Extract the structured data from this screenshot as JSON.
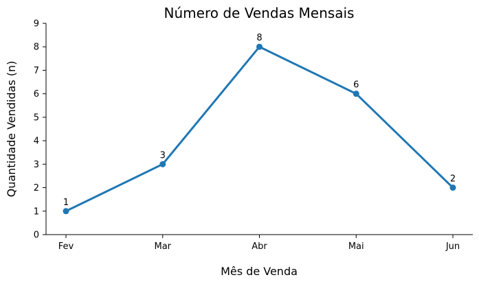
{
  "chart_data": {
    "type": "line",
    "title": "Número de Vendas Mensais",
    "xlabel": "Mês de Venda",
    "ylabel": "Quantidade Vendidas (n)",
    "categories": [
      "Fev",
      "Mar",
      "Abr",
      "Mai",
      "Jun"
    ],
    "series": [
      {
        "values": [
          1,
          3,
          8,
          6,
          2
        ],
        "color": "#1f77b4",
        "marker": "circle"
      }
    ],
    "data_labels": [
      "1",
      "3",
      "8",
      "6",
      "2"
    ],
    "ylim": [
      0,
      9
    ],
    "yticks": [
      "0",
      "1",
      "2",
      "3",
      "4",
      "5",
      "6",
      "7",
      "8",
      "9"
    ],
    "grid": false,
    "spines": [
      "left",
      "bottom"
    ]
  }
}
